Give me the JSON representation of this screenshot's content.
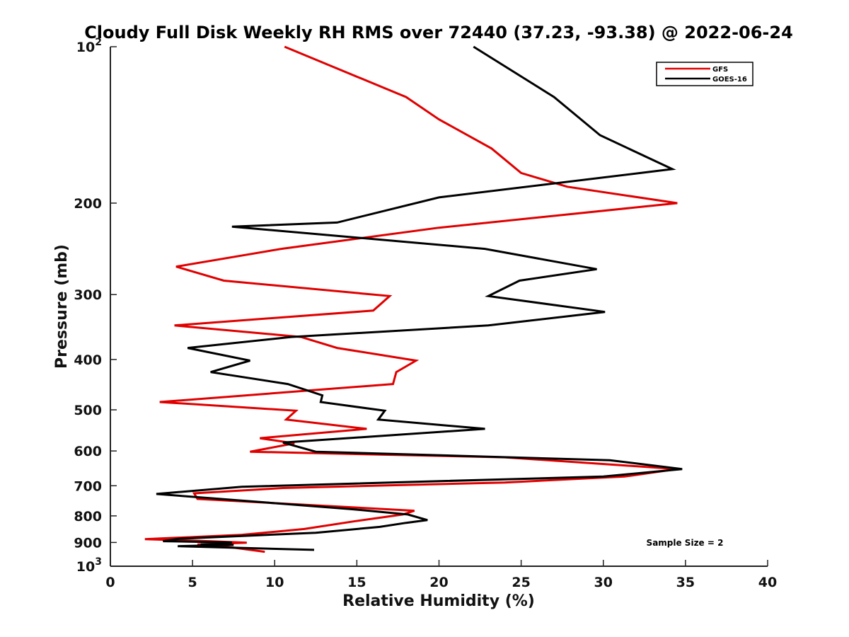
{
  "chart_data": {
    "type": "line",
    "title": "Cloudy Full Disk Weekly RH RMS over 72440 (37.23, -93.38) @ 2022-06-24",
    "xlabel": "Relative Humidity (%)",
    "ylabel": "Pressure (mb)",
    "xlim": [
      0,
      40
    ],
    "ylim": [
      100,
      1000
    ],
    "y_scale": "log",
    "y_reversed": true,
    "x_ticks": [
      "0",
      "5",
      "10",
      "15",
      "20",
      "25",
      "30",
      "35",
      "40"
    ],
    "y_ticks": [
      {
        "value": 100,
        "base": "10",
        "exp": "2"
      },
      {
        "value": 200,
        "label": "200"
      },
      {
        "value": 300,
        "label": "300"
      },
      {
        "value": 400,
        "label": "400"
      },
      {
        "value": 500,
        "label": "500"
      },
      {
        "value": 600,
        "label": "600"
      },
      {
        "value": 700,
        "label": "700"
      },
      {
        "value": 800,
        "label": "800"
      },
      {
        "value": 900,
        "label": "900"
      },
      {
        "value": 1000,
        "base": "10",
        "exp": "3"
      }
    ],
    "legend": {
      "placement": "top-right"
    },
    "grid": false,
    "annotation": "Sample Size = 2",
    "series": [
      {
        "name": "GFS",
        "color": "#e00000",
        "points": [
          [
            10.6,
            100
          ],
          [
            18.0,
            125
          ],
          [
            20.0,
            138
          ],
          [
            23.2,
            157
          ],
          [
            25.0,
            175
          ],
          [
            27.8,
            186
          ],
          [
            34.5,
            200
          ],
          [
            20.0,
            223
          ],
          [
            10.4,
            245
          ],
          [
            4.0,
            265
          ],
          [
            6.9,
            282
          ],
          [
            17.0,
            302
          ],
          [
            16.0,
            322
          ],
          [
            3.9,
            344
          ],
          [
            11.6,
            362
          ],
          [
            13.8,
            380
          ],
          [
            18.6,
            402
          ],
          [
            17.4,
            423
          ],
          [
            17.2,
            446
          ],
          [
            3.0,
            483
          ],
          [
            11.3,
            502
          ],
          [
            10.7,
            522
          ],
          [
            15.6,
            544
          ],
          [
            9.1,
            567
          ],
          [
            11.2,
            580
          ],
          [
            8.5,
            602
          ],
          [
            24.0,
            617
          ],
          [
            34.5,
            650
          ],
          [
            31.3,
            672
          ],
          [
            24.0,
            690
          ],
          [
            10.5,
            707
          ],
          [
            5.1,
            724
          ],
          [
            5.3,
            742
          ],
          [
            18.5,
            782
          ],
          [
            17.8,
            795
          ],
          [
            14.8,
            820
          ],
          [
            11.8,
            848
          ],
          [
            8.0,
            870
          ],
          [
            2.1,
            887
          ],
          [
            6.0,
            895
          ],
          [
            8.3,
            901
          ],
          [
            5.3,
            908
          ],
          [
            7.5,
            921
          ],
          [
            9.4,
            938
          ]
        ]
      },
      {
        "name": "GOES-16",
        "color": "#000000",
        "points": [
          [
            22.1,
            100
          ],
          [
            27.0,
            125
          ],
          [
            29.8,
            148
          ],
          [
            34.2,
            172
          ],
          [
            20.0,
            195
          ],
          [
            13.8,
            218
          ],
          [
            7.4,
            222
          ],
          [
            22.8,
            245
          ],
          [
            29.6,
            268
          ],
          [
            24.9,
            282
          ],
          [
            23.0,
            302
          ],
          [
            30.1,
            324
          ],
          [
            23.0,
            344
          ],
          [
            11.0,
            362
          ],
          [
            4.7,
            380
          ],
          [
            8.5,
            402
          ],
          [
            6.1,
            423
          ],
          [
            10.8,
            446
          ],
          [
            12.9,
            469
          ],
          [
            12.8,
            483
          ],
          [
            16.7,
            502
          ],
          [
            16.3,
            522
          ],
          [
            22.8,
            544
          ],
          [
            10.5,
            578
          ],
          [
            12.5,
            602
          ],
          [
            30.4,
            625
          ],
          [
            34.8,
            650
          ],
          [
            30.0,
            672
          ],
          [
            8.0,
            703
          ],
          [
            2.8,
            726
          ],
          [
            14.6,
            776
          ],
          [
            18.1,
            795
          ],
          [
            19.3,
            815
          ],
          [
            18.0,
            825
          ],
          [
            16.4,
            840
          ],
          [
            12.5,
            862
          ],
          [
            4.2,
            885
          ],
          [
            3.2,
            895
          ],
          [
            7.4,
            900
          ],
          [
            5.5,
            905
          ],
          [
            7.5,
            910
          ],
          [
            4.1,
            915
          ],
          [
            12.4,
            930
          ]
        ]
      }
    ]
  }
}
